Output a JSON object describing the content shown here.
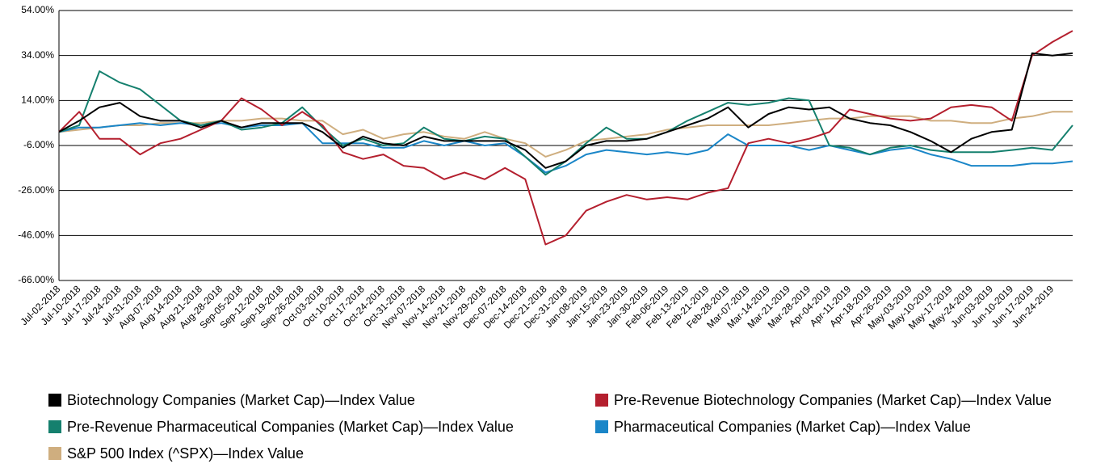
{
  "chart_data": {
    "type": "line",
    "categories": [
      "Jul-02-2018",
      "Jul-10-2018",
      "Jul-17-2018",
      "Jul-24-2018",
      "Jul-31-2018",
      "Aug-07-2018",
      "Aug-14-2018",
      "Aug-21-2018",
      "Aug-28-2018",
      "Sep-05-2018",
      "Sep-12-2018",
      "Sep-19-2018",
      "Sep-26-2018",
      "Oct-03-2018",
      "Oct-10-2018",
      "Oct-17-2018",
      "Oct-24-2018",
      "Oct-31-2018",
      "Nov-07-2018",
      "Nov-14-2018",
      "Nov-21-2018",
      "Nov-29-2018",
      "Dec-07-2018",
      "Dec-14-2018",
      "Dec-21-2018",
      "Dec-31-2018",
      "Jan-08-2019",
      "Jan-15-2019",
      "Jan-23-2019",
      "Jan-30-2019",
      "Feb-06-2019",
      "Feb-13-2019",
      "Feb-21-2019",
      "Feb-28-2019",
      "Mar-07-2019",
      "Mar-14-2019",
      "Mar-21-2019",
      "Mar-28-2019",
      "Apr-04-2019",
      "Apr-11-2019",
      "Apr-18-2019",
      "Apr-26-2019",
      "May-03-2019",
      "May-10-2019",
      "May-17-2019",
      "May-24-2019",
      "Jun-03-2019",
      "Jun-10-2019",
      "Jun-17-2019",
      "Jun-24-2019",
      null
    ],
    "series": [
      {
        "name": "Biotechnology Companies (Market Cap)—Index Value",
        "color": "#000000",
        "values": [
          0,
          5,
          11,
          13,
          7,
          5,
          5,
          2,
          5,
          2,
          4,
          4,
          4,
          0,
          -7,
          -2,
          -5,
          -6,
          -2,
          -4,
          -4,
          -4,
          -4,
          -8,
          -16,
          -13,
          -6,
          -4,
          -4,
          -3,
          0,
          3,
          6,
          11,
          2,
          8,
          11,
          10,
          11,
          6,
          4,
          3,
          0,
          -4,
          -9,
          -3,
          0,
          1,
          35,
          34,
          35
        ]
      },
      {
        "name": "Pre-Revenue Biotechnology Companies (Market Cap)—Index Value",
        "color": "#b41f2e",
        "values": [
          0,
          9,
          -3,
          -3,
          -10,
          -5,
          -3,
          1,
          5,
          15,
          10,
          3,
          9,
          3,
          -9,
          -12,
          -10,
          -15,
          -16,
          -21,
          -18,
          -21,
          -16,
          -21,
          -50,
          -46,
          -35,
          -31,
          -28,
          -30,
          -29,
          -30,
          -27,
          -25,
          -5,
          -3,
          -5,
          -3,
          0,
          10,
          8,
          6,
          5,
          6,
          11,
          12,
          11,
          5,
          34,
          40,
          45
        ]
      },
      {
        "name": "Pre-Revenue Pharmaceutical Companies (Market Cap)—Index Value",
        "color": "#15806e",
        "values": [
          0,
          3,
          27,
          22,
          19,
          12,
          5,
          3,
          5,
          1,
          2,
          4,
          11,
          2,
          -6,
          -3,
          -6,
          -5,
          2,
          -3,
          -4,
          -2,
          -3,
          -11,
          -19,
          -13,
          -5,
          2,
          -3,
          -3,
          0,
          5,
          9,
          13,
          12,
          13,
          15,
          14,
          -6,
          -7,
          -10,
          -7,
          -6,
          -8,
          -9,
          -9,
          -9,
          -8,
          -7,
          -8,
          3
        ]
      },
      {
        "name": "Pharmaceutical Companies (Market Cap)—Index Value",
        "color": "#1a86c8",
        "values": [
          0,
          2,
          2,
          3,
          4,
          3,
          4,
          3,
          4,
          2,
          3,
          3,
          4,
          -5,
          -5,
          -5,
          -7,
          -7,
          -4,
          -6,
          -4,
          -6,
          -5,
          -11,
          -18,
          -15,
          -10,
          -8,
          -9,
          -10,
          -9,
          -10,
          -8,
          -1,
          -6,
          -6,
          -6,
          -8,
          -6,
          -8,
          -10,
          -8,
          -7,
          -10,
          -12,
          -15,
          -15,
          -15,
          -14,
          -14,
          -13
        ]
      },
      {
        "name": "S&P 500 Index (^SPX)—Index Value",
        "color": "#cfae7f",
        "values": [
          0,
          1,
          2,
          3,
          3,
          4,
          4,
          4,
          5,
          5,
          6,
          6,
          5,
          5,
          -1,
          1,
          -3,
          -1,
          0,
          -2,
          -3,
          0,
          -3,
          -5,
          -11,
          -8,
          -4,
          -3,
          -2,
          -1,
          1,
          2,
          3,
          3,
          3,
          3,
          4,
          5,
          6,
          6,
          7,
          7,
          7,
          5,
          5,
          4,
          4,
          6,
          7,
          9,
          9
        ]
      }
    ],
    "ylim": [
      -66,
      54
    ],
    "yticks": [
      {
        "value": -66,
        "label": "-66.00%"
      },
      {
        "value": -46,
        "label": "-46.00%"
      },
      {
        "value": -26,
        "label": "-26.00%"
      },
      {
        "value": -6,
        "label": "-6.00%"
      },
      {
        "value": 14,
        "label": "14.00%"
      },
      {
        "value": 34,
        "label": "34.00%"
      },
      {
        "value": 54,
        "label": "54.00%"
      }
    ],
    "grid": true,
    "legend": "bottom"
  }
}
